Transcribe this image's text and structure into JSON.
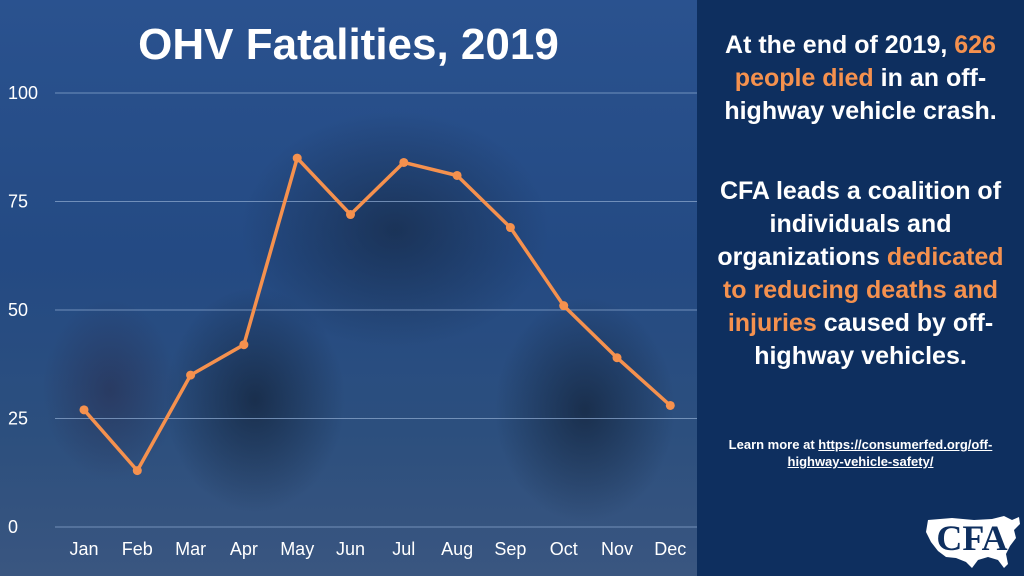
{
  "chart_data": {
    "type": "line",
    "title": "OHV Fatalities, 2019",
    "xlabel": "",
    "ylabel": "",
    "categories": [
      "Jan",
      "Feb",
      "Mar",
      "Apr",
      "May",
      "Jun",
      "Jul",
      "Aug",
      "Sep",
      "Oct",
      "Nov",
      "Dec"
    ],
    "series": [
      {
        "values": [
          27,
          13,
          35,
          42,
          85,
          72,
          84,
          81,
          69,
          51,
          39,
          28
        ]
      }
    ],
    "ylim": [
      0,
      100
    ],
    "yticks": [
      0,
      25,
      50,
      75,
      100
    ],
    "grid": true,
    "legend": "none",
    "line_color": "#f5914e",
    "grid_color": "#8aa6cc",
    "text_color": "#ffffff"
  },
  "info": {
    "p1_a": "At the end of 2019,",
    "p1_b": "626 people died",
    "p1_c": "in an off-highway vehicle crash.",
    "p2_a": "CFA leads a coalition of individuals and organizations",
    "p2_b": "dedicated to reducing deaths and injuries",
    "p2_c": "caused by off-highway vehicles.",
    "learn_more_prefix": "Learn more at",
    "learn_more_link": "https://consumerfed.org/off-highway-vehicle-safety/",
    "accent_color": "#f5914e"
  },
  "logo": {
    "icon": "usa-map-icon",
    "text": "CFA"
  }
}
